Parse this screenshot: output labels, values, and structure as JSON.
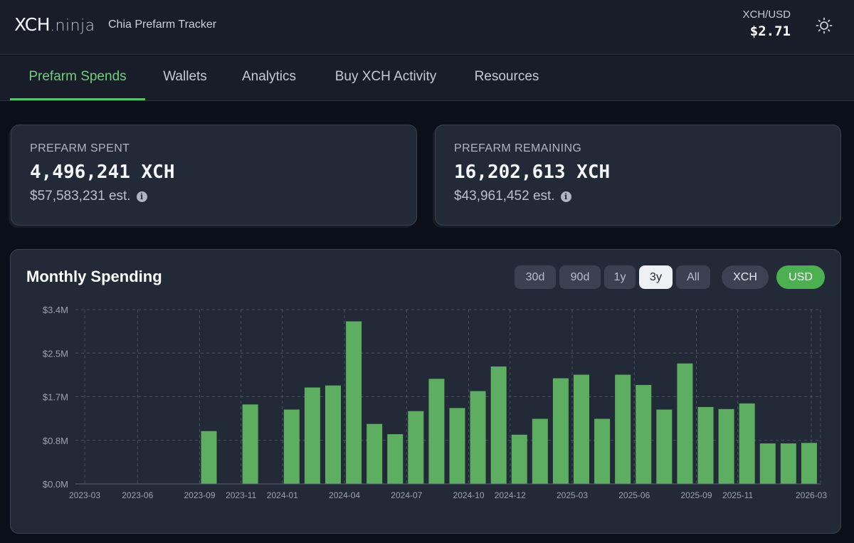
{
  "header": {
    "logo_main": "XCH",
    "logo_suffix": ".ninja",
    "subtitle": "Chia Prefarm Tracker",
    "price_label": "XCH/USD",
    "price_value": "$2.71",
    "theme_icon": "sun-icon"
  },
  "nav": {
    "tabs": [
      {
        "label": "Prefarm Spends",
        "active": true
      },
      {
        "label": "Wallets",
        "active": false
      },
      {
        "label": "Analytics",
        "active": false
      },
      {
        "label": "Buy XCH Activity",
        "active": false
      },
      {
        "label": "Resources",
        "active": false
      }
    ]
  },
  "cards": {
    "spent": {
      "label": "PREFARM SPENT",
      "value": "4,496,241 XCH",
      "estimate": "$57,583,231 est."
    },
    "remaining": {
      "label": "PREFARM REMAINING",
      "value": "16,202,613 XCH",
      "estimate": "$43,961,452 est."
    }
  },
  "panel": {
    "title": "Monthly Spending",
    "range_buttons": [
      {
        "label": "30d",
        "selected": false
      },
      {
        "label": "90d",
        "selected": false
      },
      {
        "label": "1y",
        "selected": false
      },
      {
        "label": "3y",
        "selected": true
      },
      {
        "label": "All",
        "selected": false
      }
    ],
    "unit_buttons": [
      {
        "label": "XCH",
        "selected": false
      },
      {
        "label": "USD",
        "selected": true
      }
    ]
  },
  "colors": {
    "accent": "#5bc06a",
    "bar": "#5dae60",
    "grid": "#4a5263"
  },
  "chart_data": {
    "type": "bar",
    "title": "Monthly Spending",
    "xlabel": "",
    "ylabel": "USD",
    "ylim": [
      0,
      3.4
    ],
    "yunit": "M",
    "y_ticks": [
      "$0.0M",
      "$0.8M",
      "$1.7M",
      "$2.5M",
      "$3.4M"
    ],
    "categories": [
      "2023-03",
      "2023-04",
      "2023-05",
      "2023-06",
      "2023-07",
      "2023-08",
      "2023-09",
      "2023-10",
      "2023-11",
      "2023-12",
      "2024-01",
      "2024-02",
      "2024-03",
      "2024-04",
      "2024-05",
      "2024-06",
      "2024-07",
      "2024-08",
      "2024-09",
      "2024-10",
      "2024-11",
      "2024-12",
      "2025-01",
      "2025-02",
      "2025-03",
      "2025-04",
      "2025-05",
      "2025-06",
      "2025-07",
      "2025-08",
      "2025-09",
      "2025-10",
      "2025-11",
      "2025-12",
      "2026-01",
      "2026-02",
      "2026-03"
    ],
    "values": [
      0,
      0,
      0,
      0,
      0,
      0,
      1.03,
      0,
      1.55,
      0,
      1.45,
      1.88,
      1.92,
      3.17,
      1.17,
      0.97,
      1.42,
      2.05,
      1.48,
      1.81,
      2.29,
      0.96,
      1.27,
      2.06,
      2.13,
      1.27,
      2.13,
      1.93,
      1.45,
      2.35,
      1.5,
      1.46,
      1.57,
      0.79,
      0.79,
      0.8,
      0
    ],
    "x_tick_labels": [
      "2023-03",
      "2023-06",
      "2023-09",
      "2023-11",
      "2024-01",
      "2024-04",
      "2024-07",
      "2024-10",
      "2024-12",
      "2025-03",
      "2025-06",
      "2025-09",
      "2025-11",
      "2026-03"
    ]
  }
}
